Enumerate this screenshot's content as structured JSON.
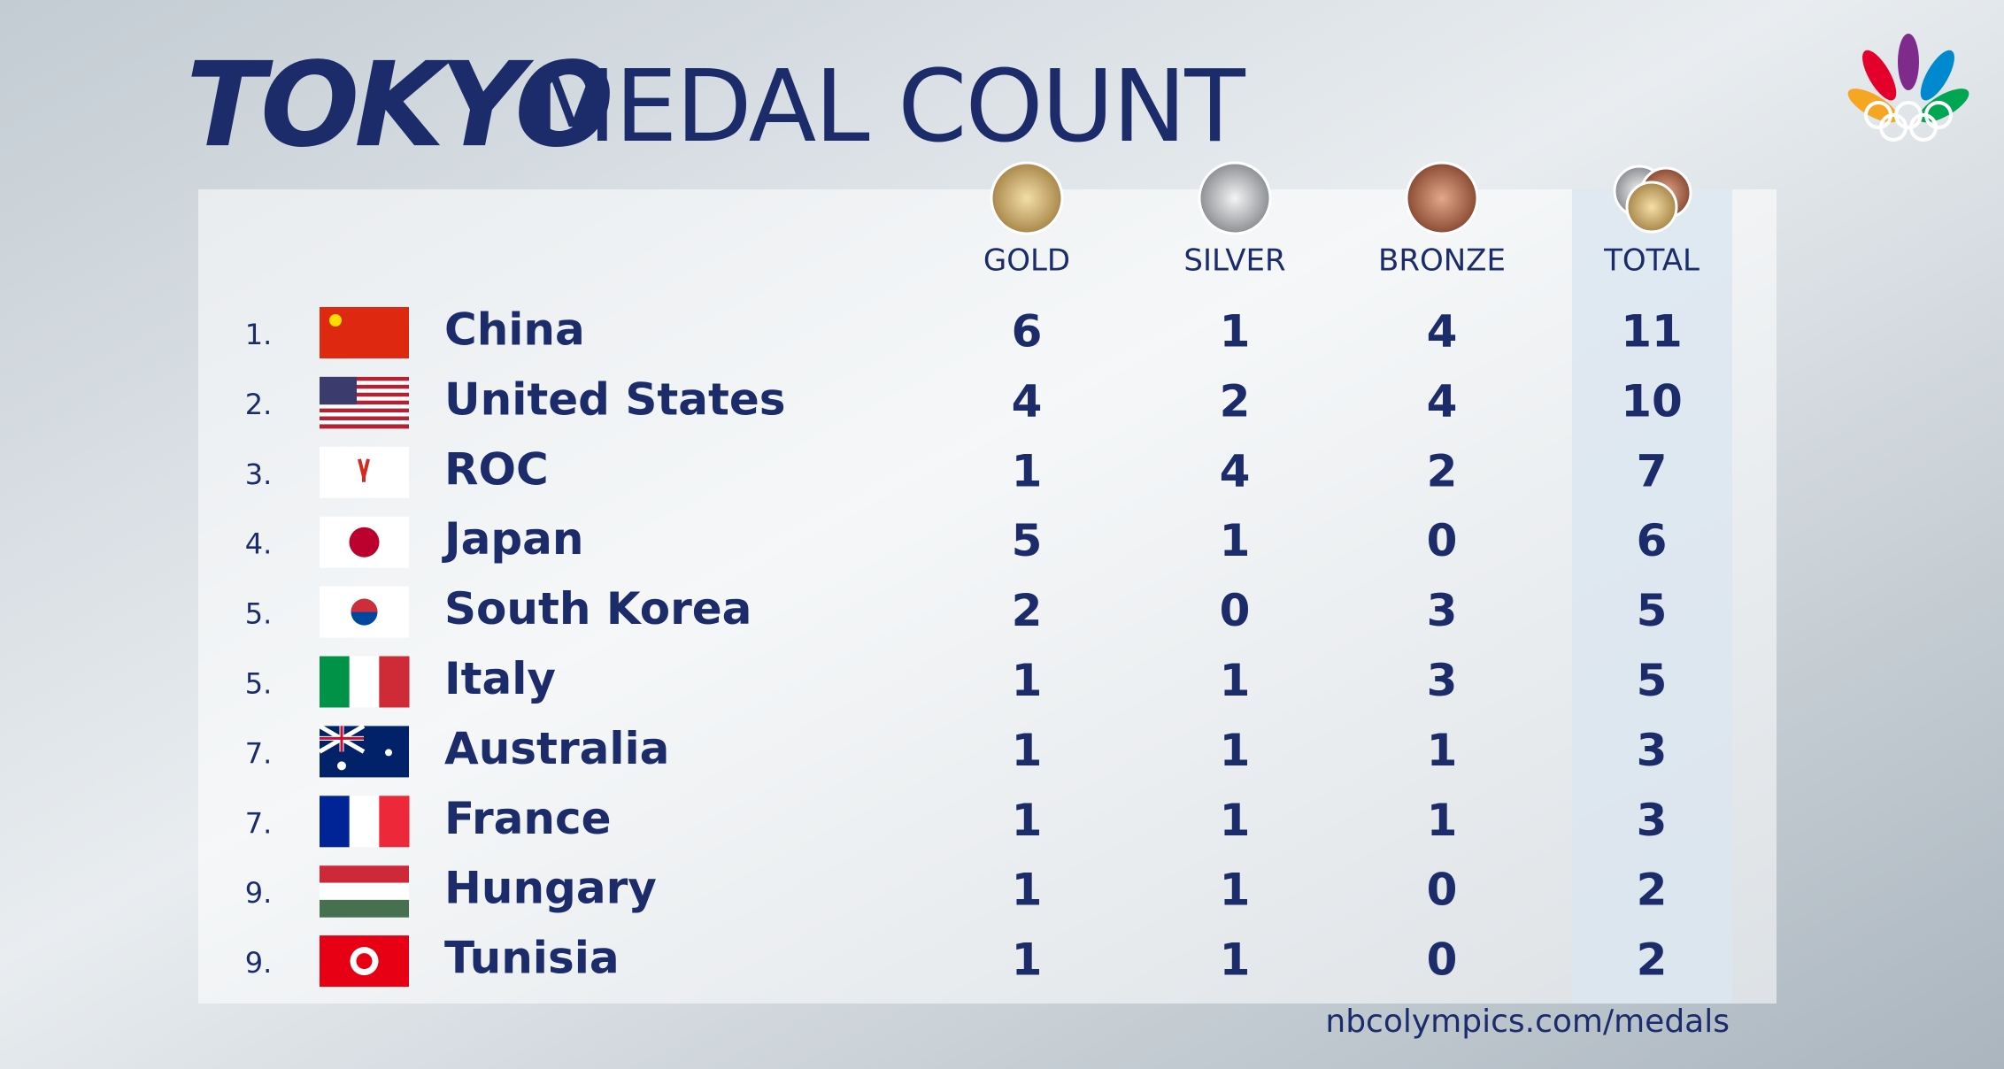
{
  "header": {
    "title_highlight": "TOKYO",
    "title": "MEDAL COUNT"
  },
  "table": {
    "columns": [
      "GOLD",
      "SILVER",
      "BRONZE",
      "TOTAL"
    ],
    "rows": [
      {
        "rank": "1.",
        "country": "China",
        "gold": 6,
        "silver": 1,
        "bronze": 4,
        "total": 11
      },
      {
        "rank": "2.",
        "country": "United States",
        "gold": 4,
        "silver": 2,
        "bronze": 4,
        "total": 10
      },
      {
        "rank": "3.",
        "country": "ROC",
        "gold": 1,
        "silver": 4,
        "bronze": 2,
        "total": 7
      },
      {
        "rank": "4.",
        "country": "Japan",
        "gold": 5,
        "silver": 1,
        "bronze": 0,
        "total": 6
      },
      {
        "rank": "5.",
        "country": "South Korea",
        "gold": 2,
        "silver": 0,
        "bronze": 3,
        "total": 5
      },
      {
        "rank": "5.",
        "country": "Italy",
        "gold": 1,
        "silver": 1,
        "bronze": 3,
        "total": 5
      },
      {
        "rank": "7.",
        "country": "Australia",
        "gold": 1,
        "silver": 1,
        "bronze": 1,
        "total": 3
      },
      {
        "rank": "7.",
        "country": "France",
        "gold": 1,
        "silver": 1,
        "bronze": 1,
        "total": 3
      },
      {
        "rank": "9.",
        "country": "Hungary",
        "gold": 1,
        "silver": 1,
        "bronze": 0,
        "total": 2
      },
      {
        "rank": "9.",
        "country": "Tunisia",
        "gold": 1,
        "silver": 1,
        "bronze": 0,
        "total": 2
      }
    ]
  },
  "footer": {
    "url": "nbcolympics.com/medals"
  }
}
